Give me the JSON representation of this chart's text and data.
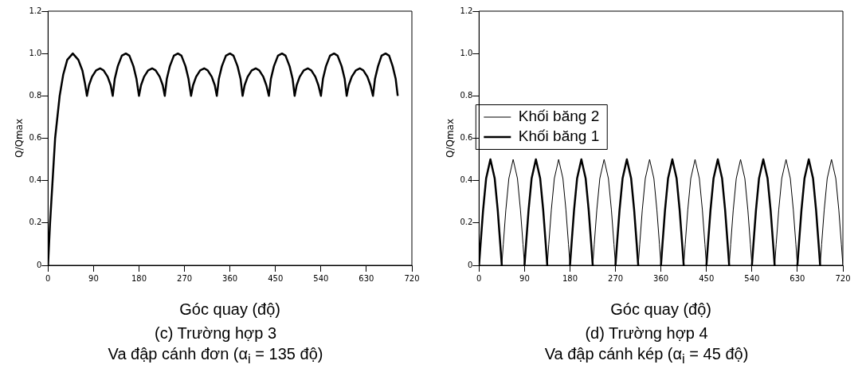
{
  "chart_data": [
    {
      "type": "line",
      "xlabel": "Góc quay (độ)",
      "ylabel": "Q/Qmax",
      "annotations": [
        "(c) Trường hợp 3",
        "Va đập cánh đơn (α$_{i}$ = 135 độ)"
      ],
      "x": [
        0,
        4,
        9,
        14,
        23,
        30,
        38,
        49,
        60,
        68,
        73,
        77,
        81,
        87,
        95,
        103,
        110,
        118,
        124,
        128,
        132,
        138,
        146,
        154,
        161,
        169,
        175,
        180,
        184,
        190,
        198,
        206,
        213,
        221,
        227,
        231,
        235,
        241,
        249,
        257,
        264,
        272,
        278,
        283,
        287,
        293,
        301,
        309,
        316,
        324,
        330,
        334,
        338,
        344,
        352,
        360,
        367,
        375,
        381,
        385,
        389,
        395,
        403,
        411,
        418,
        426,
        432,
        437,
        441,
        447,
        455,
        463,
        470,
        478,
        484,
        488,
        492,
        498,
        506,
        514,
        521,
        529,
        535,
        540,
        544,
        550,
        558,
        566,
        573,
        581,
        587,
        591,
        595,
        601,
        609,
        617,
        624,
        632,
        638,
        643,
        647,
        653,
        660,
        668,
        675,
        682,
        688,
        692
      ],
      "values": [
        0,
        0.2,
        0.4,
        0.6,
        0.8,
        0.9,
        0.97,
        1.0,
        0.97,
        0.92,
        0.86,
        0.8,
        0.85,
        0.89,
        0.92,
        0.93,
        0.92,
        0.89,
        0.85,
        0.8,
        0.88,
        0.94,
        0.99,
        1.0,
        0.99,
        0.94,
        0.88,
        0.8,
        0.85,
        0.89,
        0.92,
        0.93,
        0.92,
        0.89,
        0.85,
        0.8,
        0.88,
        0.94,
        0.99,
        1.0,
        0.99,
        0.94,
        0.88,
        0.8,
        0.85,
        0.89,
        0.92,
        0.93,
        0.92,
        0.89,
        0.85,
        0.8,
        0.88,
        0.94,
        0.99,
        1.0,
        0.99,
        0.94,
        0.88,
        0.8,
        0.85,
        0.89,
        0.92,
        0.93,
        0.92,
        0.89,
        0.85,
        0.8,
        0.88,
        0.94,
        0.99,
        1.0,
        0.99,
        0.94,
        0.88,
        0.8,
        0.85,
        0.89,
        0.92,
        0.93,
        0.92,
        0.89,
        0.85,
        0.8,
        0.88,
        0.94,
        0.99,
        1.0,
        0.99,
        0.94,
        0.88,
        0.8,
        0.85,
        0.89,
        0.92,
        0.93,
        0.92,
        0.89,
        0.85,
        0.8,
        0.88,
        0.94,
        0.99,
        1.0,
        0.99,
        0.94,
        0.88,
        0.8
      ],
      "color": "#000000",
      "marker": "none",
      "grid": false,
      "xlim": [
        0,
        720
      ],
      "xticks": [
        0,
        90,
        180,
        270,
        360,
        450,
        540,
        630,
        720
      ],
      "ylim": [
        0,
        1.2
      ],
      "yticks": [
        0,
        0.2,
        0.4,
        0.6,
        0.8,
        {
          "value": 1,
          "label": "1.0"
        },
        1.2
      ]
    },
    {
      "type": "line",
      "xlabel": "Góc quay (độ)",
      "ylabel": "Q/Qmax",
      "annotations": [
        "(d) Trường hợp 4",
        "Va đập cánh kép (α$_{i}$ = 45 độ)"
      ],
      "series": [
        {
          "name": "Khối băng 2",
          "color": "#000000",
          "x": [
            45,
            48,
            53,
            59,
            67.5,
            76,
            82,
            87,
            90,
            112.5,
            135,
            138,
            143,
            149,
            157.5,
            166,
            172,
            177,
            180,
            202.5,
            225,
            228,
            233,
            239,
            247.5,
            256,
            262,
            267,
            270,
            292.5,
            315,
            318,
            323,
            329,
            337.5,
            346,
            352,
            357,
            360,
            382.5,
            405,
            408,
            413,
            419,
            427.5,
            436,
            442,
            447,
            450,
            472.5,
            495,
            498,
            503,
            509,
            517.5,
            526,
            532,
            537,
            540,
            562.5,
            585,
            588,
            593,
            599,
            607.5,
            616,
            622,
            627,
            630,
            652.5,
            675,
            678,
            683,
            689,
            697.5,
            706,
            712,
            717,
            720
          ],
          "values": [
            0,
            0.1,
            0.26,
            0.41,
            0.5,
            0.41,
            0.26,
            0.1,
            0,
            null,
            0,
            0.1,
            0.26,
            0.41,
            0.5,
            0.41,
            0.26,
            0.1,
            0,
            null,
            0,
            0.1,
            0.26,
            0.41,
            0.5,
            0.41,
            0.26,
            0.1,
            0,
            null,
            0,
            0.1,
            0.26,
            0.41,
            0.5,
            0.41,
            0.26,
            0.1,
            0,
            null,
            0,
            0.1,
            0.26,
            0.41,
            0.5,
            0.41,
            0.26,
            0.1,
            0,
            null,
            0,
            0.1,
            0.26,
            0.41,
            0.5,
            0.41,
            0.26,
            0.1,
            0,
            null,
            0,
            0.1,
            0.26,
            0.41,
            0.5,
            0.41,
            0.26,
            0.1,
            0,
            null,
            0,
            0.1,
            0.26,
            0.41,
            0.5,
            0.41,
            0.26,
            0.1,
            0
          ]
        },
        {
          "name": "Khối băng 1",
          "color": "#000000",
          "x": [
            0,
            3,
            8,
            14,
            22.5,
            31,
            37,
            42,
            45,
            67.5,
            90,
            93,
            98,
            104,
            112.5,
            121,
            127,
            132,
            135,
            157.5,
            180,
            183,
            188,
            194,
            202.5,
            211,
            217,
            222,
            225,
            247.5,
            270,
            273,
            278,
            284,
            292.5,
            301,
            307,
            312,
            315,
            337.5,
            360,
            363,
            368,
            374,
            382.5,
            391,
            397,
            402,
            405,
            427.5,
            450,
            453,
            458,
            464,
            472.5,
            481,
            487,
            492,
            495,
            517.5,
            540,
            543,
            548,
            554,
            562.5,
            571,
            577,
            582,
            585,
            607.5,
            630,
            633,
            638,
            644,
            652.5,
            661,
            667,
            672,
            675
          ],
          "values": [
            0,
            0.1,
            0.26,
            0.41,
            0.5,
            0.41,
            0.26,
            0.1,
            0,
            null,
            0,
            0.1,
            0.26,
            0.41,
            0.5,
            0.41,
            0.26,
            0.1,
            0,
            null,
            0,
            0.1,
            0.26,
            0.41,
            0.5,
            0.41,
            0.26,
            0.1,
            0,
            null,
            0,
            0.1,
            0.26,
            0.41,
            0.5,
            0.41,
            0.26,
            0.1,
            0,
            null,
            0,
            0.1,
            0.26,
            0.41,
            0.5,
            0.41,
            0.26,
            0.1,
            0,
            null,
            0,
            0.1,
            0.26,
            0.41,
            0.5,
            0.41,
            0.26,
            0.1,
            0,
            null,
            0,
            0.1,
            0.26,
            0.41,
            0.5,
            0.41,
            0.26,
            0.1,
            0,
            null,
            0,
            0.1,
            0.26,
            0.41,
            0.5,
            0.41,
            0.26,
            0.1,
            0
          ]
        }
      ],
      "legend": "top",
      "marker": "none",
      "grid": false,
      "xlim": [
        0,
        720
      ],
      "xticks": [
        0,
        90,
        180,
        270,
        360,
        450,
        540,
        630,
        720
      ],
      "ylim": [
        0,
        1.2
      ],
      "yticks": [
        0,
        0.2,
        0.4,
        0.6,
        0.8,
        {
          "value": 1,
          "label": "1.0"
        },
        1.2
      ]
    }
  ]
}
